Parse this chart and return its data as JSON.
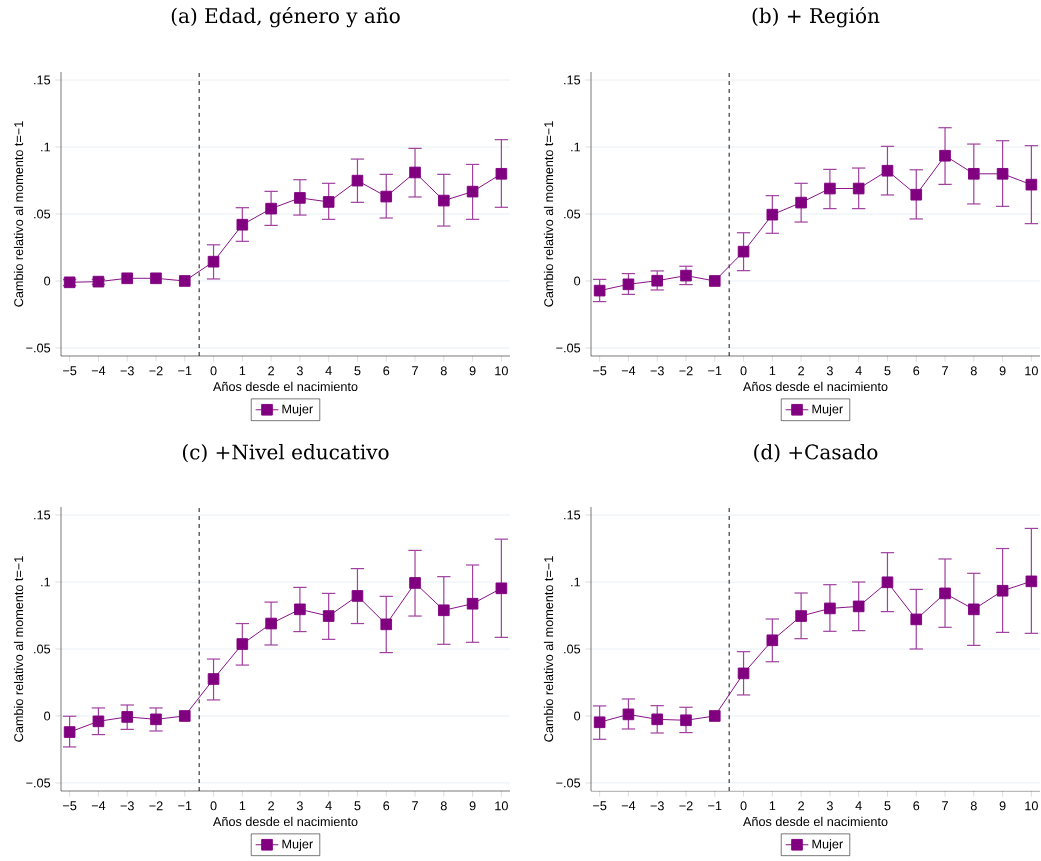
{
  "chart_data": [
    {
      "type": "line",
      "title": "(a) Edad, género y año",
      "xlabel": "Años desde el nacimiento",
      "ylabel": "Cambio relativo al momento t=−1",
      "x": [
        -5,
        -4,
        -3,
        -2,
        -1,
        0,
        1,
        2,
        3,
        4,
        5,
        6,
        7,
        8,
        9,
        10
      ],
      "series": [
        {
          "name": "Mujer",
          "color": "#800080",
          "values": [
            -0.001,
            -0.0005,
            0.002,
            0.002,
            0,
            0.0144,
            0.042,
            0.054,
            0.062,
            0.059,
            0.0749,
            0.063,
            0.081,
            0.06,
            0.0667,
            0.08
          ],
          "errors": [
            [
              -0.0035,
              0.001
            ],
            [
              -0.0025,
              0.0012
            ],
            null,
            null,
            null,
            [
              0.0015,
              0.027
            ],
            [
              0.0296,
              0.0547
            ],
            [
              0.0415,
              0.0669
            ],
            [
              0.0492,
              0.0756
            ],
            [
              0.046,
              0.0729
            ],
            [
              0.0587,
              0.091
            ],
            [
              0.047,
              0.0796
            ],
            [
              0.0627,
              0.099
            ],
            [
              0.041,
              0.0796
            ],
            [
              0.046,
              0.087
            ],
            [
              0.055,
              0.1055
            ]
          ]
        }
      ],
      "xlim": [
        -5.3,
        10.3
      ],
      "xticks": [
        {
          "value": -5,
          "label": "−5"
        },
        {
          "value": -4,
          "label": "−4"
        },
        {
          "value": -3,
          "label": "−3"
        },
        {
          "value": -2,
          "label": "−2"
        },
        {
          "value": -1,
          "label": "−1"
        },
        0,
        1,
        2,
        3,
        4,
        5,
        6,
        7,
        8,
        9,
        10
      ],
      "ylim": [
        -0.056,
        0.156
      ],
      "yticks": [
        {
          "value": -0.05,
          "label": "−.05"
        },
        0,
        {
          "value": 0.05,
          "label": ".05"
        },
        {
          "value": 0.1,
          "label": ".1"
        },
        {
          "value": 0.15,
          "label": ".15"
        }
      ],
      "grid": "y",
      "legend": "bottom",
      "marker": "square",
      "ref_lines": [
        {
          "axis": "x",
          "value": -0.5,
          "color": "#000000",
          "line_style": "dashed"
        }
      ]
    },
    {
      "type": "line",
      "title": "(b) + Región",
      "xlabel": "Años desde el nacimiento",
      "ylabel": "Cambio relativo al momento t=−1",
      "x": [
        -5,
        -4,
        -3,
        -2,
        -1,
        0,
        1,
        2,
        3,
        4,
        5,
        6,
        7,
        8,
        9,
        10
      ],
      "series": [
        {
          "name": "Mujer",
          "color": "#800080",
          "values": [
            -0.0072,
            -0.0025,
            0.0002,
            0.004,
            0,
            0.0219,
            0.0495,
            0.0585,
            0.069,
            0.069,
            0.0823,
            0.0644,
            0.0935,
            0.08,
            0.08,
            0.0719
          ],
          "errors": [
            [
              -0.0154,
              0.0012
            ],
            [
              -0.01,
              0.0055
            ],
            [
              -0.0067,
              0.0075
            ],
            [
              -0.0027,
              0.011
            ],
            null,
            [
              0.0077,
              0.036
            ],
            [
              0.0356,
              0.0637
            ],
            [
              0.044,
              0.0729
            ],
            [
              0.054,
              0.0833
            ],
            [
              0.054,
              0.0843
            ],
            [
              0.0642,
              0.1005
            ],
            [
              0.0463,
              0.083
            ],
            [
              0.0721,
              0.1144
            ],
            [
              0.0575,
              0.1022
            ],
            [
              0.0557,
              0.1047
            ],
            [
              0.0428,
              0.101
            ]
          ]
        }
      ],
      "xlim": [
        -5.3,
        10.3
      ],
      "xticks": [
        {
          "value": -5,
          "label": "−5"
        },
        {
          "value": -4,
          "label": "−4"
        },
        {
          "value": -3,
          "label": "−3"
        },
        {
          "value": -2,
          "label": "−2"
        },
        {
          "value": -1,
          "label": "−1"
        },
        0,
        1,
        2,
        3,
        4,
        5,
        6,
        7,
        8,
        9,
        10
      ],
      "ylim": [
        -0.056,
        0.156
      ],
      "yticks": [
        {
          "value": -0.05,
          "label": "−.05"
        },
        0,
        {
          "value": 0.05,
          "label": ".05"
        },
        {
          "value": 0.1,
          "label": ".1"
        },
        {
          "value": 0.15,
          "label": ".15"
        }
      ],
      "grid": "y",
      "legend": "bottom",
      "marker": "square",
      "ref_lines": [
        {
          "axis": "x",
          "value": -0.5,
          "color": "#000000",
          "line_style": "dashed"
        }
      ]
    },
    {
      "type": "line",
      "title": "(c) +Nivel educativo",
      "xlabel": "Años desde el nacimiento",
      "ylabel": "Cambio relativo al momento t=−1",
      "x": [
        -5,
        -4,
        -3,
        -2,
        -1,
        0,
        1,
        2,
        3,
        4,
        5,
        6,
        7,
        8,
        9,
        10
      ],
      "series": [
        {
          "name": "Mujer",
          "color": "#800080",
          "values": [
            -0.012,
            -0.004,
            -0.0007,
            -0.0025,
            0,
            0.0276,
            0.0537,
            0.069,
            0.0796,
            0.0746,
            0.0896,
            0.0684,
            0.0993,
            0.0789,
            0.0838,
            0.0953
          ],
          "errors": [
            [
              -0.0231,
              -0.0002
            ],
            [
              -0.0139,
              0.006
            ],
            [
              -0.01,
              0.0082
            ],
            [
              -0.0112,
              0.006
            ],
            null,
            [
              0.012,
              0.0425
            ],
            [
              0.038,
              0.069
            ],
            [
              0.053,
              0.085
            ],
            [
              0.063,
              0.096
            ],
            [
              0.0572,
              0.0915
            ],
            [
              0.069,
              0.11
            ],
            [
              0.0473,
              0.0893
            ],
            [
              0.0746,
              0.1236
            ],
            [
              0.0535,
              0.104
            ],
            [
              0.055,
              0.1127
            ],
            [
              0.0587,
              0.132
            ]
          ]
        }
      ],
      "xlim": [
        -5.3,
        10.3
      ],
      "xticks": [
        {
          "value": -5,
          "label": "−5"
        },
        {
          "value": -4,
          "label": "−4"
        },
        {
          "value": -3,
          "label": "−3"
        },
        {
          "value": -2,
          "label": "−2"
        },
        {
          "value": -1,
          "label": "−1"
        },
        0,
        1,
        2,
        3,
        4,
        5,
        6,
        7,
        8,
        9,
        10
      ],
      "ylim": [
        -0.056,
        0.156
      ],
      "yticks": [
        {
          "value": -0.05,
          "label": "−.05"
        },
        0,
        {
          "value": 0.05,
          "label": ".05"
        },
        {
          "value": 0.1,
          "label": ".1"
        },
        {
          "value": 0.15,
          "label": ".15"
        }
      ],
      "grid": "y",
      "legend": "bottom",
      "marker": "square",
      "ref_lines": [
        {
          "axis": "x",
          "value": -0.5,
          "color": "#000000",
          "line_style": "dashed"
        }
      ]
    },
    {
      "type": "line",
      "title": "(d) +Casado",
      "xlabel": "Años desde el nacimiento",
      "ylabel": "Cambio relativo al momento t=−1",
      "x": [
        -5,
        -4,
        -3,
        -2,
        -1,
        0,
        1,
        2,
        3,
        4,
        5,
        6,
        7,
        8,
        9,
        10
      ],
      "series": [
        {
          "name": "Mujer",
          "color": "#800080",
          "values": [
            -0.0047,
            0.0012,
            -0.0025,
            -0.0032,
            0,
            0.0318,
            0.0565,
            0.0746,
            0.0803,
            0.0818,
            0.0998,
            0.0721,
            0.0915,
            0.0796,
            0.0935,
            0.1005
          ],
          "errors": [
            [
              -0.0174,
              0.0075
            ],
            [
              -0.0097,
              0.0127
            ],
            [
              -0.0127,
              0.0077
            ],
            [
              -0.0124,
              0.0065
            ],
            null,
            [
              0.0157,
              0.048
            ],
            [
              0.0405,
              0.0724
            ],
            [
              0.0577,
              0.0918
            ],
            [
              0.0632,
              0.098
            ],
            [
              0.0637,
              0.1
            ],
            [
              0.0779,
              0.1219
            ],
            [
              0.05,
              0.0945
            ],
            [
              0.0662,
              0.1172
            ],
            [
              0.0527,
              0.1065
            ],
            [
              0.0624,
              0.125
            ],
            [
              0.0617,
              0.14
            ]
          ]
        }
      ],
      "xlim": [
        -5.3,
        10.3
      ],
      "xticks": [
        {
          "value": -5,
          "label": "−5"
        },
        {
          "value": -4,
          "label": "−4"
        },
        {
          "value": -3,
          "label": "−3"
        },
        {
          "value": -2,
          "label": "−2"
        },
        {
          "value": -1,
          "label": "−1"
        },
        0,
        1,
        2,
        3,
        4,
        5,
        6,
        7,
        8,
        9,
        10
      ],
      "ylim": [
        -0.056,
        0.156
      ],
      "yticks": [
        {
          "value": -0.05,
          "label": "−.05"
        },
        0,
        {
          "value": 0.05,
          "label": ".05"
        },
        {
          "value": 0.1,
          "label": ".1"
        },
        {
          "value": 0.15,
          "label": ".15"
        }
      ],
      "grid": "y",
      "legend": "bottom",
      "marker": "square",
      "ref_lines": [
        {
          "axis": "x",
          "value": -0.5,
          "color": "#000000",
          "line_style": "dashed"
        }
      ]
    }
  ]
}
